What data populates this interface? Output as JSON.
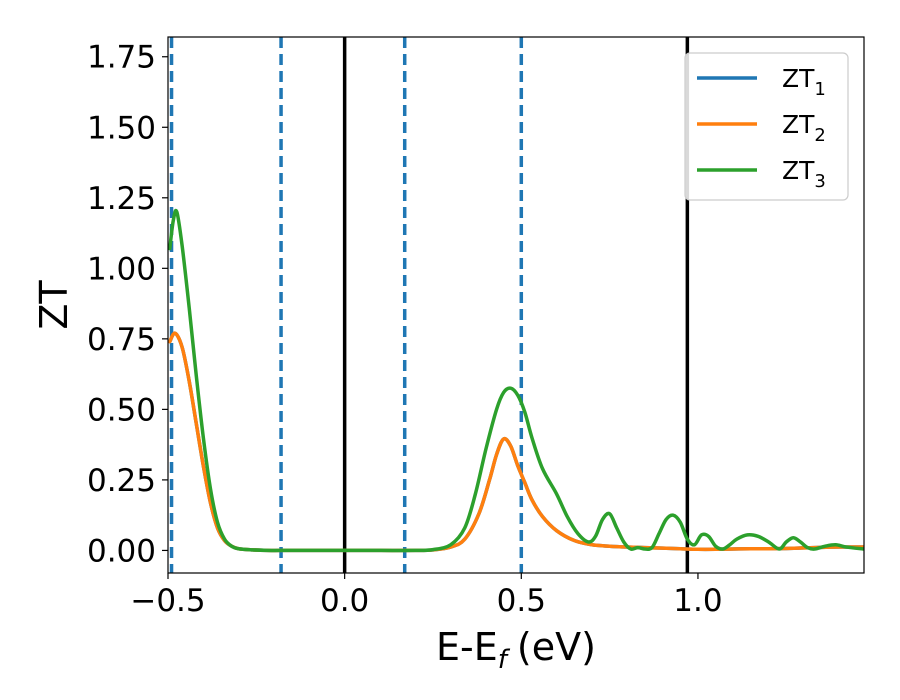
{
  "chart_data": {
    "type": "line",
    "xlabel": "E-E",
    "xlabel_sub": "f",
    "xlabel_unit": "(eV)",
    "ylabel": "ZT",
    "xlim": [
      -0.5,
      1.47
    ],
    "ylim": [
      -0.08,
      1.82
    ],
    "xticks": [
      -0.5,
      0.0,
      0.5,
      1.0
    ],
    "xtick_labels": [
      "−0.5",
      "0.0",
      "0.5",
      "1.0"
    ],
    "yticks": [
      0.0,
      0.25,
      0.5,
      0.75,
      1.0,
      1.25,
      1.5,
      1.75
    ],
    "ytick_labels": [
      "0.00",
      "0.25",
      "0.50",
      "0.75",
      "1.00",
      "1.25",
      "1.50",
      "1.75"
    ],
    "legend_position": "top-right",
    "vlines_solid": [
      0.0,
      0.97
    ],
    "vlines_dashed": [
      -0.49,
      -0.18,
      0.17,
      0.5
    ],
    "colors": {
      "ZT1": "#1f77b4",
      "ZT2": "#ff7f0e",
      "ZT3": "#2ca02c",
      "vline_solid": "#000000",
      "vline_dashed": "#1f77b4"
    },
    "series": [
      {
        "name": "ZT",
        "sub": "1",
        "color": "#1f77b4",
        "x": [
          -0.495,
          -0.48,
          -0.46,
          -0.44,
          -0.42,
          -0.4,
          -0.38,
          -0.36,
          -0.34,
          -0.32,
          -0.3,
          -0.26,
          -0.22,
          -0.18,
          -0.1,
          0.0,
          0.1,
          0.2,
          0.25,
          0.3,
          0.34,
          0.38,
          0.41,
          0.43,
          0.45,
          0.47,
          0.49,
          0.51,
          0.53,
          0.56,
          0.6,
          0.65,
          0.7,
          0.75,
          0.8,
          0.85,
          0.9,
          0.95,
          1.0,
          1.05,
          1.1,
          1.15,
          1.2,
          1.25,
          1.3,
          1.35,
          1.4,
          1.47
        ],
        "y": [
          0.74,
          0.77,
          0.72,
          0.6,
          0.45,
          0.3,
          0.17,
          0.08,
          0.035,
          0.015,
          0.006,
          0.002,
          0.0,
          0.0,
          0.0,
          0.0,
          0.0,
          0.0,
          0.002,
          0.012,
          0.04,
          0.13,
          0.25,
          0.34,
          0.395,
          0.37,
          0.3,
          0.24,
          0.18,
          0.12,
          0.07,
          0.035,
          0.02,
          0.015,
          0.012,
          0.01,
          0.008,
          0.006,
          0.004,
          0.004,
          0.005,
          0.006,
          0.006,
          0.007,
          0.009,
          0.011,
          0.012,
          0.012
        ]
      },
      {
        "name": "ZT",
        "sub": "2",
        "color": "#ff7f0e",
        "x": [
          -0.495,
          -0.48,
          -0.46,
          -0.44,
          -0.42,
          -0.4,
          -0.38,
          -0.36,
          -0.34,
          -0.32,
          -0.3,
          -0.26,
          -0.22,
          -0.18,
          -0.1,
          0.0,
          0.1,
          0.2,
          0.25,
          0.3,
          0.34,
          0.38,
          0.41,
          0.43,
          0.45,
          0.47,
          0.49,
          0.51,
          0.53,
          0.56,
          0.6,
          0.65,
          0.7,
          0.75,
          0.8,
          0.85,
          0.9,
          0.95,
          1.0,
          1.05,
          1.1,
          1.15,
          1.2,
          1.25,
          1.3,
          1.35,
          1.4,
          1.47
        ],
        "y": [
          0.74,
          0.77,
          0.72,
          0.6,
          0.45,
          0.3,
          0.17,
          0.08,
          0.035,
          0.015,
          0.006,
          0.002,
          0.0,
          0.0,
          0.0,
          0.0,
          0.0,
          0.0,
          0.002,
          0.012,
          0.04,
          0.13,
          0.25,
          0.34,
          0.395,
          0.37,
          0.3,
          0.24,
          0.18,
          0.12,
          0.07,
          0.035,
          0.02,
          0.015,
          0.012,
          0.01,
          0.008,
          0.006,
          0.004,
          0.004,
          0.005,
          0.006,
          0.006,
          0.007,
          0.009,
          0.011,
          0.012,
          0.012
        ]
      },
      {
        "name": "ZT",
        "sub": "3",
        "color": "#2ca02c",
        "x": [
          -0.495,
          -0.485,
          -0.475,
          -0.46,
          -0.44,
          -0.42,
          -0.4,
          -0.38,
          -0.36,
          -0.34,
          -0.32,
          -0.3,
          -0.26,
          -0.22,
          -0.18,
          -0.1,
          0.0,
          0.1,
          0.2,
          0.25,
          0.3,
          0.34,
          0.37,
          0.4,
          0.43,
          0.45,
          0.47,
          0.49,
          0.51,
          0.53,
          0.56,
          0.6,
          0.63,
          0.66,
          0.69,
          0.71,
          0.73,
          0.75,
          0.77,
          0.79,
          0.81,
          0.83,
          0.85,
          0.87,
          0.89,
          0.91,
          0.93,
          0.95,
          0.97,
          0.99,
          1.01,
          1.03,
          1.05,
          1.07,
          1.09,
          1.11,
          1.14,
          1.17,
          1.2,
          1.23,
          1.25,
          1.27,
          1.29,
          1.31,
          1.33,
          1.36,
          1.39,
          1.42,
          1.47
        ],
        "y": [
          1.07,
          1.17,
          1.2,
          1.08,
          0.86,
          0.62,
          0.4,
          0.22,
          0.1,
          0.04,
          0.015,
          0.006,
          0.002,
          0.0,
          0.0,
          0.0,
          0.0,
          0.0,
          0.0,
          0.003,
          0.02,
          0.08,
          0.2,
          0.36,
          0.5,
          0.56,
          0.575,
          0.55,
          0.49,
          0.4,
          0.29,
          0.2,
          0.12,
          0.06,
          0.03,
          0.05,
          0.11,
          0.13,
          0.08,
          0.03,
          0.005,
          0.01,
          0.005,
          0.01,
          0.06,
          0.11,
          0.125,
          0.1,
          0.04,
          0.02,
          0.055,
          0.05,
          0.015,
          0.005,
          0.02,
          0.04,
          0.055,
          0.05,
          0.03,
          0.005,
          0.03,
          0.045,
          0.03,
          0.01,
          0.005,
          0.015,
          0.02,
          0.012,
          0.005
        ]
      }
    ]
  }
}
